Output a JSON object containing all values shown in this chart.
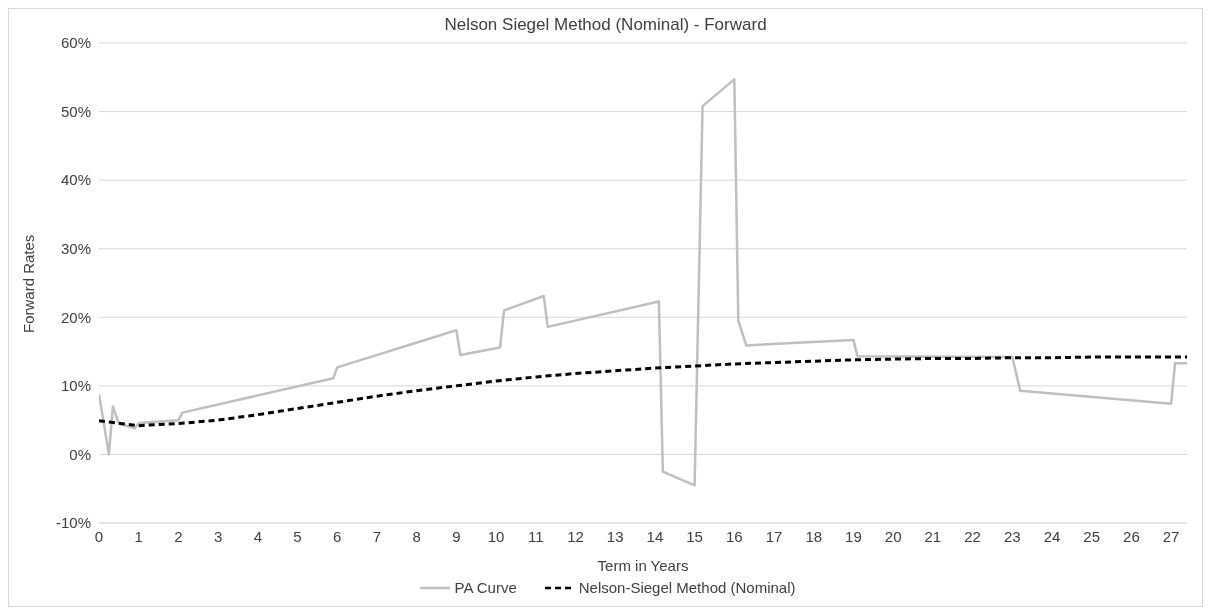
{
  "chart_data": {
    "type": "line",
    "title": "Nelson Siegel Method (Nominal) - Forward",
    "xlabel": "Term in Years",
    "ylabel": "Forward Rates",
    "xlim": [
      0,
      27.4
    ],
    "xticks": [
      0,
      1,
      2,
      3,
      4,
      5,
      6,
      7,
      8,
      9,
      10,
      11,
      12,
      13,
      14,
      15,
      16,
      17,
      18,
      19,
      20,
      21,
      22,
      23,
      24,
      25,
      26,
      27
    ],
    "ylim": [
      -10,
      60
    ],
    "yticks": [
      {
        "value": -10,
        "label": "-10%"
      },
      {
        "value": 0,
        "label": "0%"
      },
      {
        "value": 10,
        "label": "10%"
      },
      {
        "value": 20,
        "label": "20%"
      },
      {
        "value": 30,
        "label": "30%"
      },
      {
        "value": 40,
        "label": "40%"
      },
      {
        "value": 50,
        "label": "50%"
      },
      {
        "value": 60,
        "label": "60%"
      }
    ],
    "grid": "y",
    "legend": "bottom",
    "marker": "none",
    "series": [
      {
        "name": "PA Curve",
        "color": "#bfbfbf",
        "line_style": "solid",
        "x": [
          0,
          0.25,
          0.35,
          0.5,
          0.9,
          1.0,
          2.0,
          2.1,
          5.9,
          6.0,
          9.0,
          9.1,
          10.1,
          10.2,
          11.2,
          11.3,
          14.1,
          14.2,
          15.0,
          15.2,
          16.0,
          16.1,
          16.3,
          19.0,
          19.1,
          23.0,
          23.2,
          27.0,
          27.1,
          27.4
        ],
        "values": [
          8.8,
          0,
          7,
          4.5,
          3.8,
          4.6,
          5.0,
          6.1,
          11.1,
          12.7,
          18.1,
          14.5,
          15.6,
          21.0,
          23.1,
          18.6,
          22.3,
          -2.5,
          -4.5,
          50.8,
          54.7,
          19.5,
          15.9,
          16.7,
          14.3,
          14.2,
          9.3,
          7.4,
          13.3,
          13.3
        ]
      },
      {
        "name": "Nelson-Siegel Method (Nominal)",
        "color": "#000000",
        "line_style": "dashed",
        "x": [
          0,
          1,
          2,
          3,
          4,
          5,
          6,
          7,
          8,
          9,
          10,
          11,
          12,
          13,
          14,
          15,
          16,
          17,
          18,
          19,
          20,
          21,
          22,
          23,
          24,
          25,
          26,
          27,
          27.4
        ],
        "values": [
          4.9,
          4.2,
          4.5,
          5.0,
          5.8,
          6.7,
          7.6,
          8.5,
          9.3,
          10.0,
          10.7,
          11.3,
          11.8,
          12.2,
          12.6,
          12.9,
          13.2,
          13.4,
          13.6,
          13.8,
          13.9,
          14.0,
          14.0,
          14.1,
          14.1,
          14.2,
          14.2,
          14.2,
          14.2
        ]
      }
    ]
  }
}
